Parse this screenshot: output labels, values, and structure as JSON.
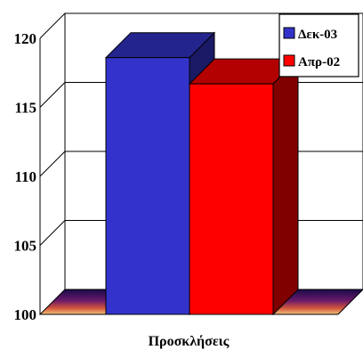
{
  "chart_data": {
    "type": "bar",
    "categories": [
      "Προσκλήσεις"
    ],
    "series": [
      {
        "name": "Δεκ-03",
        "values": [
          118.6
        ],
        "color": "#3333cc"
      },
      {
        "name": "Απρ-02",
        "values": [
          116.7
        ],
        "color": "#ff0000"
      }
    ],
    "ylim": [
      100,
      120
    ],
    "yticks": [
      "100",
      "105",
      "110",
      "115",
      "120"
    ],
    "xlabel": "",
    "ylabel": "",
    "grid": true,
    "legend": "top-right",
    "style": "3d-clustered"
  }
}
